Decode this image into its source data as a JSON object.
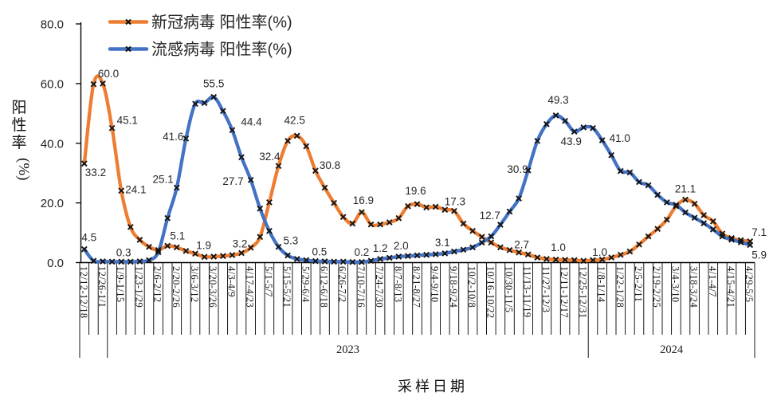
{
  "page": {
    "background": "#ffffff"
  },
  "chart_data": {
    "type": "line",
    "title": "",
    "x_axis_title": "采样日期",
    "y_axis_title": "阳性率 (%)",
    "ylim": [
      0,
      80
    ],
    "y_ticks": [
      "0.0",
      "20.0",
      "40.0",
      "60.0",
      "80.0"
    ],
    "grid": false,
    "legend_position": "top-left-inside",
    "n_points": 73,
    "tick_label_every": 2,
    "tick_labels": [
      "12/12-12/18",
      "12/26-1/1",
      "1/9-1/15",
      "1/23-1/29",
      "2/6-2/12",
      "2/20-2/26",
      "3/6-3/12",
      "3/20-3/26",
      "4/3-4/9",
      "4/17-4/23",
      "5/1-5/7",
      "5/15-5/21",
      "5/29-6/4",
      "6/12-6/18",
      "6/26-7/2",
      "7/10-7/16",
      "7/24-7/30",
      "8/7-8/13",
      "8/21-8/27",
      "9/4-9/10",
      "9/18-9/24",
      "10/2-10/8",
      "10/16-10/22",
      "10/30-11/5",
      "11/13-11/19",
      "11/27-12/3",
      "12/11-12/17",
      "12/25-12/31",
      "1/8-1/14",
      "1/22-1/28",
      "2/5-2/11",
      "2/19-2/25",
      "3/4-3/10",
      "3/18-3/24",
      "4/1-4/7",
      "4/15-4/21",
      "4/29-5/5"
    ],
    "year_bands": [
      {
        "label": "2023",
        "from_point": 4,
        "to_point": 55
      },
      {
        "label": "2024",
        "from_point": 56,
        "to_point": 73
      }
    ],
    "series": [
      {
        "id": "covid",
        "name": "新冠病毒 阳性率(%)",
        "color": "#ED7D31",
        "marker": "x",
        "values": [
          33.2,
          59.8,
          60.0,
          45.1,
          24.1,
          11.9,
          7.6,
          5.3,
          4.2,
          5.6,
          5.1,
          3.9,
          3.0,
          1.9,
          2.0,
          2.2,
          2.5,
          3.2,
          5.0,
          8.6,
          20.2,
          32.4,
          40.8,
          42.5,
          39.0,
          30.8,
          25.1,
          20.0,
          15.3,
          13.1,
          16.9,
          12.8,
          12.8,
          13.5,
          14.9,
          18.9,
          19.6,
          18.5,
          18.7,
          17.7,
          17.3,
          13.1,
          10.6,
          8.6,
          6.7,
          5.1,
          4.2,
          3.4,
          2.7,
          1.7,
          1.2,
          1.0,
          0.9,
          0.8,
          0.6,
          0.8,
          1.0,
          1.7,
          2.6,
          3.7,
          6.1,
          8.8,
          11.3,
          14.4,
          18.9,
          21.1,
          19.7,
          15.9,
          13.8,
          9.7,
          8.2,
          7.5,
          7.1
        ],
        "point_labels": [
          {
            "i": 1,
            "t": "33.2",
            "dx": 1,
            "dy": 16,
            "a": "start"
          },
          {
            "i": 3,
            "t": "60.0",
            "dx": 7,
            "dy": -8
          },
          {
            "i": 4,
            "t": "45.1",
            "dx": 6,
            "dy": -5,
            "a": "start"
          },
          {
            "i": 5,
            "t": "24.1",
            "dx": 5,
            "dy": 3,
            "a": "start"
          },
          {
            "i": 11,
            "t": "5.1",
            "dx": 1,
            "dy": -10
          },
          {
            "i": 14,
            "t": "1.9",
            "dx": -1,
            "dy": -10
          },
          {
            "i": 18,
            "t": "3.2",
            "dx": -2,
            "dy": -7
          },
          {
            "i": 22,
            "t": "32.4",
            "dx": 2,
            "dy": -7,
            "a": "end"
          },
          {
            "i": 24,
            "t": "42.5",
            "dx": -3,
            "dy": -15
          },
          {
            "i": 26,
            "t": "30.8",
            "dx": 5,
            "dy": -2,
            "a": "start"
          },
          {
            "i": 31,
            "t": "16.9",
            "dx": 2,
            "dy": -10
          },
          {
            "i": 37,
            "t": "19.6",
            "dx": -2,
            "dy": -12
          },
          {
            "i": 41,
            "t": "17.3",
            "dx": 1,
            "dy": -7
          },
          {
            "i": 49,
            "t": "2.7",
            "dx": -8,
            "dy": -8
          },
          {
            "i": 52,
            "t": "1.0",
            "dx": 3,
            "dy": -11
          },
          {
            "i": 57,
            "t": "1.0",
            "dx": -3,
            "dy": -5
          },
          {
            "i": 66,
            "t": "21.1",
            "dx": 0,
            "dy": -9
          },
          {
            "i": 73,
            "t": "7.1",
            "dx": 2,
            "dy": -7,
            "a": "start"
          }
        ]
      },
      {
        "id": "flu",
        "name": "流感病毒 阳性率(%)",
        "color": "#4472C4",
        "marker": "x",
        "values": [
          4.5,
          0.6,
          0.4,
          0.3,
          0.3,
          0.3,
          0.4,
          0.8,
          3.5,
          14.9,
          25.1,
          41.6,
          53.2,
          53.5,
          55.5,
          50.8,
          44.4,
          35.3,
          27.7,
          18.1,
          10.6,
          5.3,
          2.4,
          1.2,
          0.8,
          0.5,
          0.4,
          0.3,
          0.3,
          0.2,
          0.2,
          0.6,
          1.2,
          1.6,
          2.0,
          2.2,
          2.4,
          2.6,
          2.8,
          3.1,
          3.7,
          4.3,
          5.1,
          6.7,
          8.8,
          12.7,
          17.1,
          21.5,
          30.9,
          40.8,
          46.4,
          49.3,
          47.5,
          43.9,
          45.3,
          45.1,
          41.0,
          36.0,
          30.7,
          30.2,
          27.0,
          25.9,
          22.7,
          20.2,
          19.3,
          16.8,
          15.0,
          13.2,
          11.1,
          8.8,
          7.7,
          6.8,
          5.9
        ],
        "point_labels": [
          {
            "i": 1,
            "t": "4.5",
            "dx": 6,
            "dy": -10
          },
          {
            "i": 5,
            "t": "0.3",
            "dx": 3,
            "dy": -7
          },
          {
            "i": 11,
            "t": "25.1",
            "dx": -4,
            "dy": -6,
            "a": "end"
          },
          {
            "i": 12,
            "t": "41.6",
            "dx": -3,
            "dy": 2,
            "a": "end"
          },
          {
            "i": 15,
            "t": "55.5",
            "dx": 0,
            "dy": -12
          },
          {
            "i": 17,
            "t": "44.4",
            "dx": 11,
            "dy": -6,
            "a": "start"
          },
          {
            "i": 19,
            "t": "27.7",
            "dx": -9,
            "dy": 6,
            "a": "end"
          },
          {
            "i": 22,
            "t": "5.3",
            "dx": 6,
            "dy": -3,
            "a": "start"
          },
          {
            "i": 26,
            "t": "0.5",
            "dx": 5,
            "dy": -7
          },
          {
            "i": 31,
            "t": "0.2",
            "dx": 0,
            "dy": -8
          },
          {
            "i": 33,
            "t": "1.2",
            "dx": 0,
            "dy": -9
          },
          {
            "i": 35,
            "t": "2.0",
            "dx": 3,
            "dy": -9
          },
          {
            "i": 40,
            "t": "3.1",
            "dx": -3,
            "dy": -9
          },
          {
            "i": 46,
            "t": "12.7",
            "dx": 0,
            "dy": -7,
            "a": "end"
          },
          {
            "i": 49,
            "t": "30.9",
            "dx": 0,
            "dy": 3,
            "a": "end"
          },
          {
            "i": 52,
            "t": "49.3",
            "dx": 3,
            "dy": -15
          },
          {
            "i": 54,
            "t": "43.9",
            "dx": -4,
            "dy": 17
          },
          {
            "i": 57,
            "t": "41.0",
            "dx": 9,
            "dy": 2,
            "a": "start"
          },
          {
            "i": 73,
            "t": "5.9",
            "dx": 2,
            "dy": 17,
            "a": "start"
          }
        ]
      }
    ]
  }
}
